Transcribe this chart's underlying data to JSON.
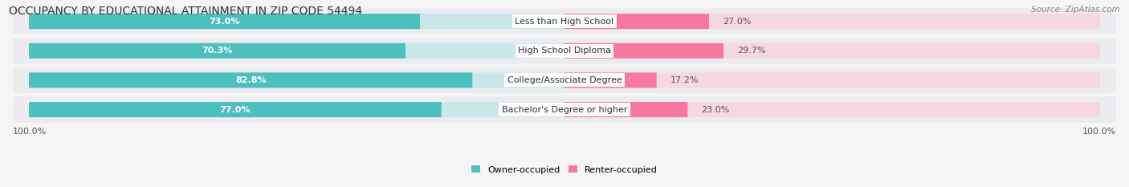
{
  "title": "OCCUPANCY BY EDUCATIONAL ATTAINMENT IN ZIP CODE 54494",
  "source": "Source: ZipAtlas.com",
  "categories": [
    "Less than High School",
    "High School Diploma",
    "College/Associate Degree",
    "Bachelor's Degree or higher"
  ],
  "owner_values": [
    73.0,
    70.3,
    82.8,
    77.0
  ],
  "renter_values": [
    27.0,
    29.7,
    17.2,
    23.0
  ],
  "owner_color": "#4dbfbf",
  "renter_color": "#f878a0",
  "owner_bg_color": "#c8e8e8",
  "renter_bg_color": "#f8d8e0",
  "row_bg_color": "#ebebf0",
  "owner_label": "Owner-occupied",
  "renter_label": "Renter-occupied",
  "axis_label_left": "100.0%",
  "axis_label_right": "100.0%",
  "title_fontsize": 10,
  "source_fontsize": 7.5,
  "bar_label_fontsize": 8,
  "cat_label_fontsize": 8,
  "legend_fontsize": 8,
  "background_color": "#f5f5f5",
  "text_color": "#333333",
  "source_color": "#888888",
  "value_color_right": "#555555"
}
